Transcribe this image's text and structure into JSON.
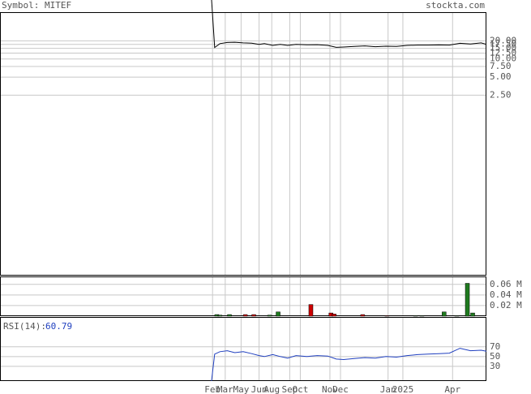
{
  "header": {
    "symbol": "Symbol: MITEF",
    "site": "stockta.com"
  },
  "chart_data": [
    {
      "type": "line",
      "log_scale": true,
      "color": "#000000",
      "grid": true,
      "xlim": [
        -200,
        260
      ],
      "ylim": [
        0.0025,
        60
      ],
      "yticks": [
        {
          "value": 2.5,
          "label": "2.50"
        },
        {
          "value": 5,
          "label": "5.00"
        },
        {
          "value": 7.5,
          "label": "7.50"
        },
        {
          "value": 10,
          "label": "10.00"
        },
        {
          "value": 12.5,
          "label": "12.50"
        },
        {
          "value": 15,
          "label": "15.00"
        },
        {
          "value": 17.5,
          "label": "17.50"
        },
        {
          "value": 20,
          "label": "20.00"
        }
      ],
      "x": [
        0,
        3,
        8,
        15,
        22,
        30,
        38,
        45,
        50,
        58,
        65,
        72,
        80,
        90,
        100,
        110,
        118,
        125,
        135,
        145,
        155,
        165,
        175,
        185,
        195,
        205,
        215,
        225,
        235,
        245,
        255,
        260
      ],
      "values": [
        100,
        15.5,
        18,
        18.8,
        19,
        18.5,
        18.3,
        17.5,
        18,
        16.8,
        17.5,
        16.8,
        17.5,
        17.2,
        17.3,
        16.8,
        15.6,
        15.8,
        16.2,
        16.5,
        16.0,
        16.3,
        16.2,
        16.8,
        17.0,
        17.0,
        17.1,
        17.0,
        18.2,
        17.8,
        18.5,
        17.5
      ]
    },
    {
      "type": "bar",
      "grid": true,
      "xlim": [
        -200,
        260
      ],
      "ylim": [
        0,
        0.075
      ],
      "yticks": [
        {
          "value": 0.02,
          "label": "0.02 M"
        },
        {
          "value": 0.04,
          "label": "0.04 M"
        },
        {
          "value": 0.06,
          "label": "0.06 M"
        }
      ],
      "x": [
        5,
        8,
        17,
        32,
        40,
        55,
        63,
        94,
        113,
        116,
        143,
        166,
        193,
        199,
        220,
        232,
        242,
        247
      ],
      "values": [
        0.003,
        0.002,
        0.003,
        0.003,
        0.003,
        0.002,
        0.008,
        0.022,
        0.006,
        0.004,
        0.003,
        0.001,
        0.001,
        0.001,
        0.008,
        0.001,
        0.062,
        0.006
      ],
      "colors": [
        "#1f7a1f",
        "#1f7a1f",
        "#1f7a1f",
        "#cc0000",
        "#cc0000",
        "#1f7a1f",
        "#1f7a1f",
        "#cc0000",
        "#cc0000",
        "#cc0000",
        "#cc0000",
        "#cc0000",
        "#1f7a1f",
        "#1f7a1f",
        "#1f7a1f",
        "#1f7a1f",
        "#1f7a1f",
        "#1f7a1f"
      ]
    },
    {
      "type": "line",
      "label": "RSI(14):",
      "last_value": 60.79,
      "color": "#1f3fbf",
      "grid": true,
      "xlim": [
        -200,
        260
      ],
      "ylim": [
        0,
        131
      ],
      "yticks": [
        30,
        50,
        70
      ],
      "xticks": [
        {
          "value": 1,
          "label": "Feb"
        },
        {
          "value": 13,
          "label": "Mar"
        },
        {
          "value": 28,
          "label": "May"
        },
        {
          "value": 45,
          "label": "Jun"
        },
        {
          "value": 57,
          "label": "Aug"
        },
        {
          "value": 74,
          "label": "Sep"
        },
        {
          "value": 84,
          "label": "Oct"
        },
        {
          "value": 112,
          "label": "Nov"
        },
        {
          "value": 122,
          "label": "Dec"
        },
        {
          "value": 167,
          "label": "Jan"
        },
        {
          "value": 181,
          "label": "2025"
        },
        {
          "value": 228,
          "label": "Apr"
        }
      ],
      "x": [
        0,
        3,
        8,
        15,
        22,
        30,
        38,
        45,
        50,
        58,
        65,
        72,
        80,
        90,
        100,
        110,
        118,
        125,
        135,
        145,
        155,
        165,
        175,
        185,
        195,
        205,
        215,
        225,
        235,
        245,
        255,
        260
      ],
      "values": [
        0,
        55,
        60,
        62,
        58,
        60,
        56,
        52,
        50,
        54,
        50,
        47,
        52,
        50,
        52,
        51,
        45,
        44,
        46,
        48,
        47,
        50,
        49,
        52,
        54,
        55,
        56,
        57,
        67,
        62,
        63,
        60.79
      ]
    }
  ]
}
